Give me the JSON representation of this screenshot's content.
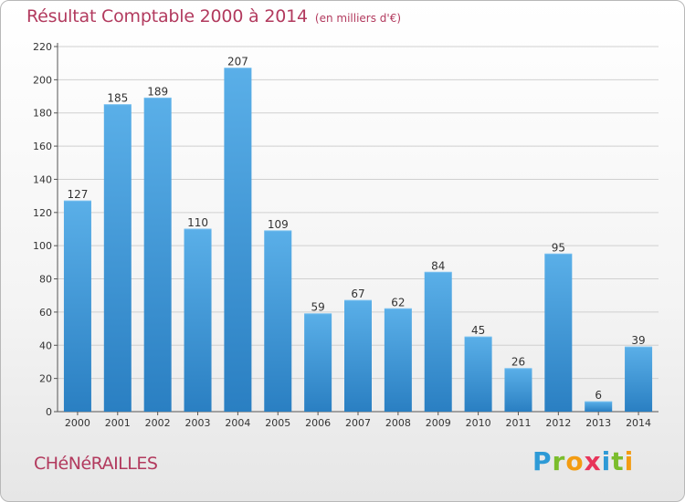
{
  "header": {
    "title": "Résultat Comptable 2000 à 2014",
    "subtitle": "(en milliers d'€)"
  },
  "footer": {
    "commune": "CHéNéRAILLES",
    "logo_letters": [
      "P",
      "r",
      "o",
      "x",
      "i",
      "t",
      "i"
    ],
    "logo_colors": [
      "#2e9ad6",
      "#7bbd2c",
      "#f39c12",
      "#e8345a",
      "#2e9ad6",
      "#7bbd2c",
      "#f39c12"
    ]
  },
  "colors": {
    "bar_top": "#5aafe8",
    "bar_bottom": "#2a7fc2",
    "axis_text": "#333333",
    "grid": "#d0d0d0"
  },
  "chart_data": {
    "type": "bar",
    "title": "Résultat Comptable 2000 à 2014",
    "subtitle": "(en milliers d'€)",
    "categories": [
      "2000",
      "2001",
      "2002",
      "2003",
      "2004",
      "2005",
      "2006",
      "2007",
      "2008",
      "2009",
      "2010",
      "2011",
      "2012",
      "2013",
      "2014"
    ],
    "values": [
      127,
      185,
      189,
      110,
      207,
      109,
      59,
      67,
      62,
      84,
      45,
      26,
      95,
      6,
      39
    ],
    "ylim": [
      0,
      220
    ],
    "yticks": [
      0,
      20,
      40,
      60,
      80,
      100,
      120,
      140,
      160,
      180,
      200,
      220
    ],
    "grid": true
  }
}
